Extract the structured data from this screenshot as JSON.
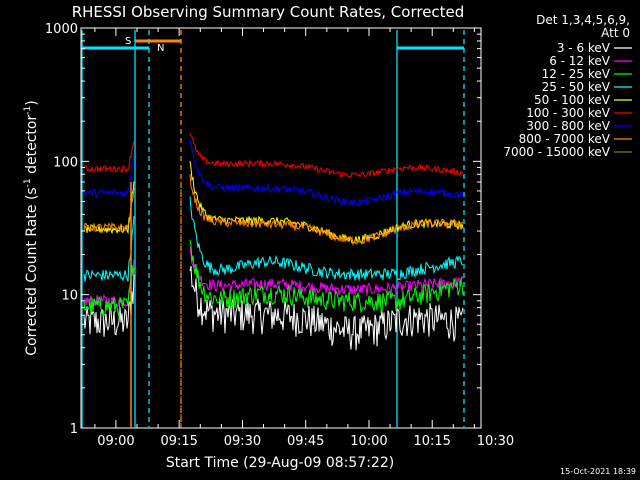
{
  "chart_data": {
    "type": "line",
    "title": "RHESSI Observing Summary Count Rates, Corrected",
    "xlabel": "Start Time (29-Aug-09 08:57:22)",
    "ylabel_main": "Corrected Count Rate (s",
    "ylabel_sup1": "-1",
    "ylabel_mid": " detector",
    "ylabel_sup2": "-1",
    "ylabel_end": ")",
    "yscale": "log",
    "ylim": [
      1,
      1000
    ],
    "xlim_minutes": [
      8.95,
      103.8
    ],
    "x_ticks": [
      "09:00",
      "09:15",
      "09:30",
      "09:45",
      "10:00",
      "10:15",
      "10:30"
    ],
    "y_ticks": [
      "1",
      "10",
      "100",
      "1000"
    ],
    "legend_header": [
      "Det 1,3,4,5,6,9,",
      "Att 0"
    ],
    "legend_position": "right",
    "footer_date": "15-Oct-2021 18:39",
    "flags": [
      {
        "label": "S",
        "color": "#ff8800",
        "x0": 71,
        "x1": 85
      },
      {
        "label": "N",
        "color": "#00e5ff",
        "x0": 85,
        "x1": 92
      }
    ],
    "data_gap": {
      "start": 11.6,
      "end": 27.4
    },
    "series": [
      {
        "name": "3 - 6 keV",
        "color": "#ffffff",
        "pre": 6.3,
        "pk": 16,
        "post": 7.2,
        "hump": 1.0,
        "dip": 0.74,
        "end": 6.2,
        "noise": 0.1
      },
      {
        "name": "6 - 12 keV",
        "color": "#ff00ff",
        "pre": 9,
        "pk": 22,
        "post": 11.5,
        "hump": 1.05,
        "dip": 0.95,
        "end": 12.5,
        "noise": 0.035
      },
      {
        "name": "12 - 25 keV",
        "color": "#00ff00",
        "pre": 8.2,
        "pk": 26,
        "post": 9.0,
        "hump": 1.15,
        "dip": 1.0,
        "end": 12.0,
        "noise": 0.06
      },
      {
        "name": "25 - 50 keV",
        "color": "#00ffff",
        "pre": 14,
        "pk": 50,
        "post": 14.5,
        "hump": 1.22,
        "dip": 0.98,
        "end": 18,
        "noise": 0.035
      },
      {
        "name": "50 - 100 keV",
        "color": "#ffff00",
        "pre": 31,
        "pk": 95,
        "post": 36,
        "hump": 1.0,
        "dip": 0.72,
        "end": 33,
        "noise": 0.025
      },
      {
        "name": "100 - 300 keV",
        "color": "#ff0000",
        "pre": 88,
        "pk": 170,
        "post": 95,
        "hump": 1.02,
        "dip": 0.83,
        "end": 82,
        "noise": 0.018
      },
      {
        "name": "300 - 800 keV",
        "color": "#0000ff",
        "pre": 58,
        "pk": 150,
        "post": 63,
        "hump": 1.0,
        "dip": 0.78,
        "end": 56,
        "noise": 0.022
      },
      {
        "name": "800 - 7000 keV",
        "color": "#ff8800",
        "pre": 32,
        "pk": 75,
        "post": 35,
        "hump": 0.97,
        "dip": 0.73,
        "end": 34,
        "noise": 0.025
      },
      {
        "name": "7000 - 15000 keV",
        "color": "#808000",
        "pre": 0,
        "pk": 0,
        "post": 0,
        "hump": 0,
        "dip": 0,
        "end": 0,
        "noise": 0
      }
    ]
  }
}
